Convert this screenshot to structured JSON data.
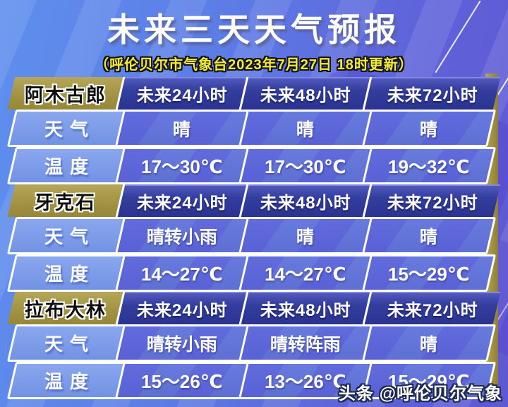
{
  "title": "未来三天天气预报",
  "subtitle": "（呼伦贝尔市气象台2023年7月27日  18时更新）",
  "columns": [
    "未来24小时",
    "未来48小时",
    "未来72小时"
  ],
  "row_labels": {
    "weather": "天气",
    "temperature": "温度"
  },
  "sections": [
    {
      "location": "阿木古郎",
      "weather": [
        "晴",
        "晴",
        "晴"
      ],
      "temperature": [
        "17～30℃",
        "17～30℃",
        "19～32℃"
      ]
    },
    {
      "location": "牙克石",
      "weather": [
        "晴转小雨",
        "晴",
        "晴"
      ],
      "temperature": [
        "14～27℃",
        "14～27℃",
        "15～29℃"
      ]
    },
    {
      "location": "拉布大林",
      "weather": [
        "晴转小雨",
        "晴转阵雨",
        "晴"
      ],
      "temperature": [
        "15～26℃",
        "13～26℃",
        "15～29℃"
      ]
    }
  ],
  "watermark": "头条 @呼伦贝尔气象",
  "colors": {
    "background_blue": "#5f8fee",
    "background_purple": "#5f58d2",
    "location_gold": "#a39344",
    "header_blue": "#2f3a9c",
    "label_blue": "#7c9cea",
    "value_blue": "#5468d4",
    "subtitle_yellow": "#f2ea3a",
    "border_white": "#ffffff"
  }
}
